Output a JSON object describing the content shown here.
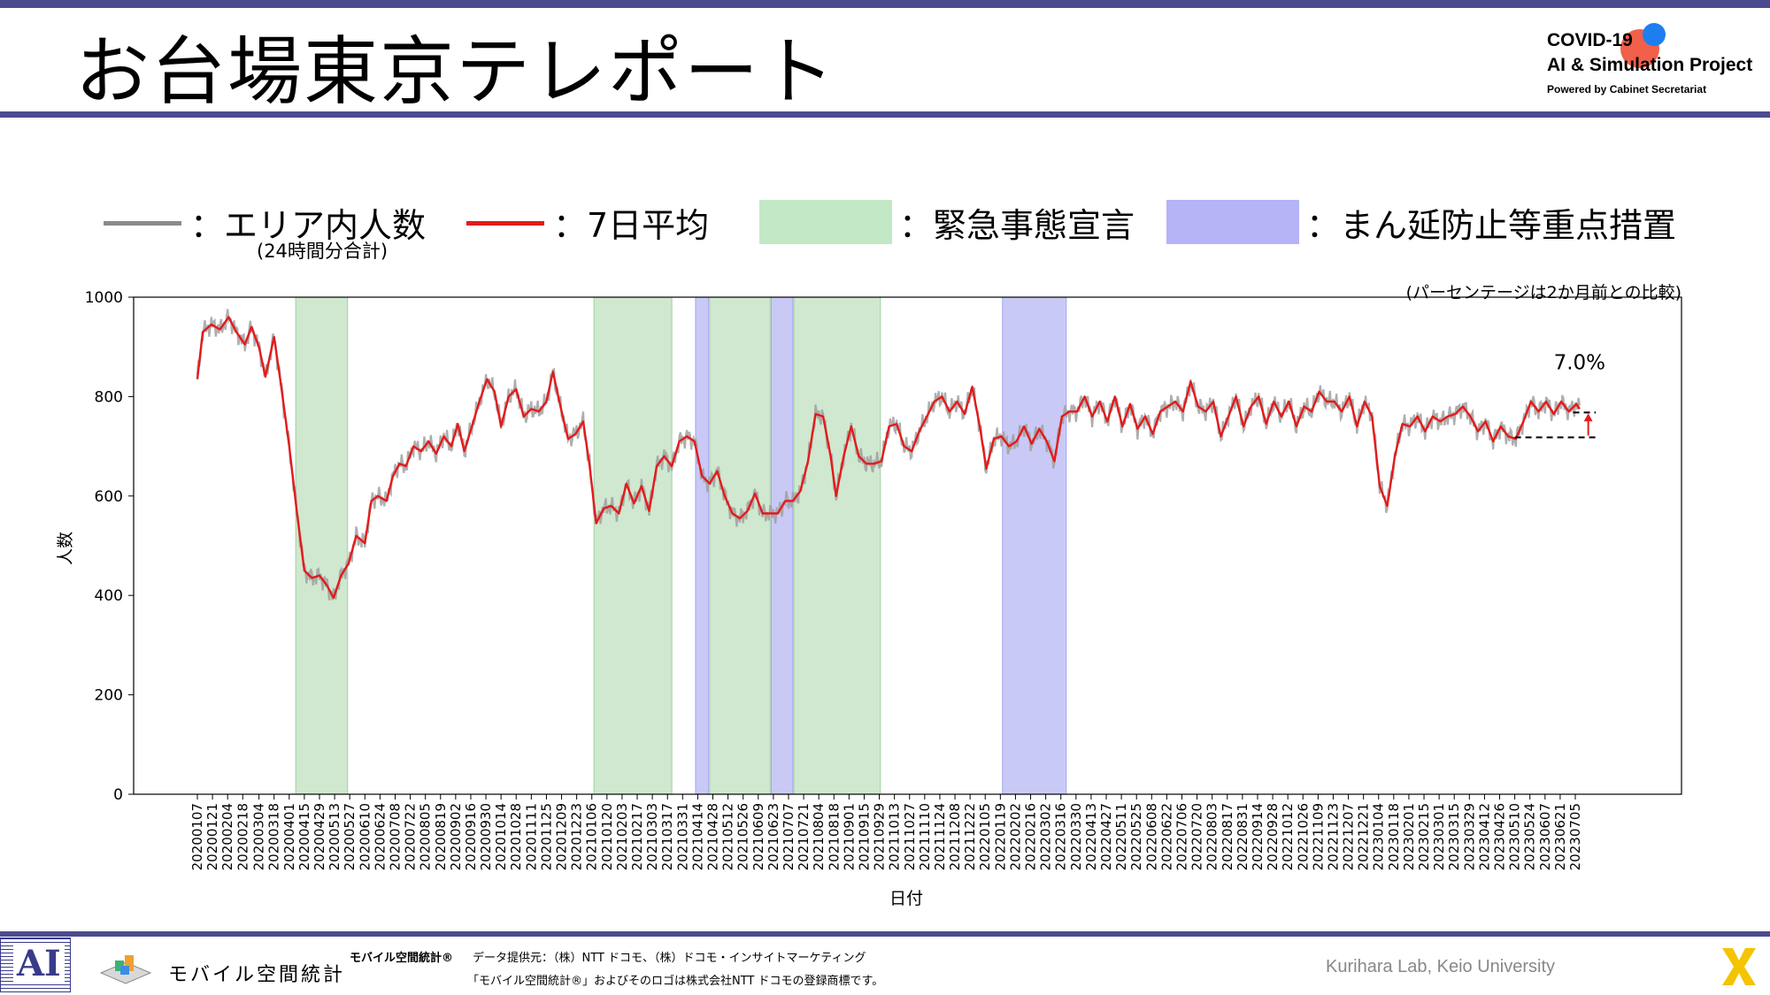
{
  "header": {
    "title": "お台場東京テレポート",
    "logo_line1": "COVID-19",
    "logo_line2": "AI & Simulation Project",
    "logo_line3": "Powered by Cabinet Secretariat"
  },
  "legend": {
    "daily_label": "：エリア内人数",
    "daily_sub": "(24時間分合計)",
    "avg_label": "：7日平均",
    "emergency_label": "：緊急事態宣言",
    "semi_label": "：まん延防止等重点措置",
    "note": "(パーセンテージは2か月前との比較)"
  },
  "colors": {
    "daily": "#a0a0a0",
    "avg": "#e41a1a",
    "emergency": "#a8d8a8",
    "semi": "#a8a8f0",
    "frame": "#4b4b8f"
  },
  "chart_data": {
    "type": "line",
    "xlabel": "日付",
    "ylabel": "人数",
    "ylim": [
      0,
      1000
    ],
    "yticks": [
      0,
      200,
      400,
      600,
      800,
      1000
    ],
    "x_range": [
      "2020-01-01",
      "2023-07-31"
    ],
    "xtick_labels": [
      "20200107",
      "20200121",
      "20200204",
      "20200218",
      "20200304",
      "20200318",
      "20200401",
      "20200415",
      "20200429",
      "20200513",
      "20200527",
      "20200610",
      "20200624",
      "20200708",
      "20200722",
      "20200805",
      "20200819",
      "20200902",
      "20200916",
      "20200930",
      "20201014",
      "20201028",
      "20201111",
      "20201125",
      "20201209",
      "20201223",
      "20210106",
      "20210120",
      "20210203",
      "20210217",
      "20210303",
      "20210317",
      "20210331",
      "20210414",
      "20210428",
      "20210512",
      "20210526",
      "20210609",
      "20210623",
      "20210707",
      "20210721",
      "20210804",
      "20210818",
      "20210901",
      "20210915",
      "20210929",
      "20211013",
      "20211027",
      "20211110",
      "20211124",
      "20211208",
      "20211222",
      "20220105",
      "20220119",
      "20220202",
      "20220216",
      "20220302",
      "20220316",
      "20220330",
      "20220413",
      "20220427",
      "20220511",
      "20220525",
      "20220608",
      "20220622",
      "20220706",
      "20220720",
      "20220803",
      "20220817",
      "20220831",
      "20220914",
      "20220928",
      "20221012",
      "20221026",
      "20221109",
      "20221123",
      "20221207",
      "20221221",
      "20230104",
      "20230118",
      "20230201",
      "20230215",
      "20230301",
      "20230315",
      "20230329",
      "20230412",
      "20230426",
      "20230510",
      "20230524",
      "20230607",
      "20230621",
      "20230705"
    ],
    "periods": [
      {
        "type": "emergency",
        "start": "2020-04-07",
        "end": "2020-05-25"
      },
      {
        "type": "emergency",
        "start": "2021-01-08",
        "end": "2021-03-21"
      },
      {
        "type": "semi",
        "start": "2021-04-12",
        "end": "2021-04-24"
      },
      {
        "type": "emergency",
        "start": "2021-04-25",
        "end": "2021-06-20"
      },
      {
        "type": "semi",
        "start": "2021-06-21",
        "end": "2021-07-11"
      },
      {
        "type": "emergency",
        "start": "2021-07-12",
        "end": "2021-09-30"
      },
      {
        "type": "semi",
        "start": "2022-01-21",
        "end": "2022-03-21"
      }
    ],
    "series": [
      {
        "name": "7日平均",
        "points": [
          [
            "2020-01-07",
            835
          ],
          [
            "2020-01-12",
            930
          ],
          [
            "2020-01-20",
            945
          ],
          [
            "2020-01-28",
            935
          ],
          [
            "2020-02-05",
            960
          ],
          [
            "2020-02-12",
            930
          ],
          [
            "2020-02-20",
            905
          ],
          [
            "2020-02-26",
            940
          ],
          [
            "2020-03-04",
            900
          ],
          [
            "2020-03-10",
            840
          ],
          [
            "2020-03-14",
            880
          ],
          [
            "2020-03-18",
            920
          ],
          [
            "2020-03-24",
            830
          ],
          [
            "2020-04-01",
            700
          ],
          [
            "2020-04-08",
            570
          ],
          [
            "2020-04-15",
            450
          ],
          [
            "2020-04-22",
            435
          ],
          [
            "2020-04-29",
            440
          ],
          [
            "2020-05-06",
            420
          ],
          [
            "2020-05-12",
            395
          ],
          [
            "2020-05-19",
            440
          ],
          [
            "2020-05-26",
            465
          ],
          [
            "2020-06-02",
            520
          ],
          [
            "2020-06-10",
            505
          ],
          [
            "2020-06-16",
            590
          ],
          [
            "2020-06-22",
            600
          ],
          [
            "2020-06-30",
            590
          ],
          [
            "2020-07-06",
            640
          ],
          [
            "2020-07-12",
            665
          ],
          [
            "2020-07-18",
            660
          ],
          [
            "2020-07-25",
            700
          ],
          [
            "2020-08-01",
            690
          ],
          [
            "2020-08-08",
            710
          ],
          [
            "2020-08-15",
            685
          ],
          [
            "2020-08-22",
            720
          ],
          [
            "2020-08-29",
            700
          ],
          [
            "2020-09-04",
            745
          ],
          [
            "2020-09-10",
            690
          ],
          [
            "2020-09-17",
            740
          ],
          [
            "2020-09-24",
            790
          ],
          [
            "2020-10-01",
            835
          ],
          [
            "2020-10-08",
            810
          ],
          [
            "2020-10-14",
            740
          ],
          [
            "2020-10-21",
            800
          ],
          [
            "2020-10-28",
            815
          ],
          [
            "2020-11-04",
            760
          ],
          [
            "2020-11-11",
            775
          ],
          [
            "2020-11-18",
            770
          ],
          [
            "2020-11-25",
            790
          ],
          [
            "2020-12-01",
            850
          ],
          [
            "2020-12-08",
            780
          ],
          [
            "2020-12-15",
            715
          ],
          [
            "2020-12-22",
            725
          ],
          [
            "2020-12-29",
            750
          ],
          [
            "2021-01-04",
            660
          ],
          [
            "2021-01-10",
            545
          ],
          [
            "2021-01-17",
            575
          ],
          [
            "2021-01-24",
            580
          ],
          [
            "2021-01-31",
            565
          ],
          [
            "2021-02-07",
            625
          ],
          [
            "2021-02-14",
            585
          ],
          [
            "2021-02-21",
            620
          ],
          [
            "2021-02-28",
            570
          ],
          [
            "2021-03-07",
            660
          ],
          [
            "2021-03-14",
            680
          ],
          [
            "2021-03-21",
            660
          ],
          [
            "2021-03-28",
            710
          ],
          [
            "2021-04-04",
            720
          ],
          [
            "2021-04-11",
            710
          ],
          [
            "2021-04-18",
            640
          ],
          [
            "2021-04-25",
            625
          ],
          [
            "2021-05-02",
            650
          ],
          [
            "2021-05-09",
            600
          ],
          [
            "2021-05-16",
            565
          ],
          [
            "2021-05-23",
            555
          ],
          [
            "2021-05-30",
            570
          ],
          [
            "2021-06-06",
            605
          ],
          [
            "2021-06-13",
            565
          ],
          [
            "2021-06-20",
            565
          ],
          [
            "2021-06-27",
            565
          ],
          [
            "2021-07-04",
            590
          ],
          [
            "2021-07-11",
            590
          ],
          [
            "2021-07-18",
            610
          ],
          [
            "2021-07-25",
            670
          ],
          [
            "2021-08-01",
            765
          ],
          [
            "2021-08-08",
            760
          ],
          [
            "2021-08-15",
            680
          ],
          [
            "2021-08-20",
            600
          ],
          [
            "2021-08-27",
            680
          ],
          [
            "2021-09-03",
            740
          ],
          [
            "2021-09-10",
            680
          ],
          [
            "2021-09-17",
            665
          ],
          [
            "2021-09-24",
            665
          ],
          [
            "2021-10-01",
            670
          ],
          [
            "2021-10-08",
            740
          ],
          [
            "2021-10-15",
            745
          ],
          [
            "2021-10-22",
            700
          ],
          [
            "2021-10-29",
            690
          ],
          [
            "2021-11-05",
            730
          ],
          [
            "2021-11-12",
            760
          ],
          [
            "2021-11-19",
            790
          ],
          [
            "2021-11-26",
            800
          ],
          [
            "2021-12-03",
            770
          ],
          [
            "2021-12-10",
            790
          ],
          [
            "2021-12-17",
            765
          ],
          [
            "2021-12-24",
            820
          ],
          [
            "2021-12-31",
            740
          ],
          [
            "2022-01-06",
            655
          ],
          [
            "2022-01-13",
            715
          ],
          [
            "2022-01-20",
            720
          ],
          [
            "2022-01-27",
            700
          ],
          [
            "2022-02-03",
            710
          ],
          [
            "2022-02-10",
            740
          ],
          [
            "2022-02-17",
            705
          ],
          [
            "2022-02-24",
            735
          ],
          [
            "2022-03-03",
            710
          ],
          [
            "2022-03-10",
            670
          ],
          [
            "2022-03-17",
            760
          ],
          [
            "2022-03-24",
            770
          ],
          [
            "2022-03-31",
            770
          ],
          [
            "2022-04-07",
            800
          ],
          [
            "2022-04-14",
            760
          ],
          [
            "2022-04-21",
            790
          ],
          [
            "2022-04-28",
            750
          ],
          [
            "2022-05-05",
            800
          ],
          [
            "2022-05-12",
            740
          ],
          [
            "2022-05-19",
            785
          ],
          [
            "2022-05-26",
            735
          ],
          [
            "2022-06-02",
            760
          ],
          [
            "2022-06-09",
            725
          ],
          [
            "2022-06-16",
            770
          ],
          [
            "2022-06-23",
            780
          ],
          [
            "2022-06-30",
            790
          ],
          [
            "2022-07-07",
            770
          ],
          [
            "2022-07-14",
            830
          ],
          [
            "2022-07-21",
            780
          ],
          [
            "2022-07-28",
            770
          ],
          [
            "2022-08-04",
            790
          ],
          [
            "2022-08-11",
            720
          ],
          [
            "2022-08-18",
            760
          ],
          [
            "2022-08-25",
            800
          ],
          [
            "2022-09-01",
            740
          ],
          [
            "2022-09-08",
            780
          ],
          [
            "2022-09-15",
            800
          ],
          [
            "2022-09-22",
            745
          ],
          [
            "2022-09-29",
            790
          ],
          [
            "2022-10-06",
            760
          ],
          [
            "2022-10-13",
            790
          ],
          [
            "2022-10-20",
            740
          ],
          [
            "2022-10-27",
            780
          ],
          [
            "2022-11-03",
            770
          ],
          [
            "2022-11-10",
            810
          ],
          [
            "2022-11-17",
            790
          ],
          [
            "2022-11-24",
            790
          ],
          [
            "2022-12-01",
            770
          ],
          [
            "2022-12-08",
            800
          ],
          [
            "2022-12-15",
            740
          ],
          [
            "2022-12-22",
            790
          ],
          [
            "2022-12-29",
            760
          ],
          [
            "2023-01-05",
            620
          ],
          [
            "2023-01-12",
            580
          ],
          [
            "2023-01-19",
            680
          ],
          [
            "2023-01-26",
            745
          ],
          [
            "2023-02-02",
            740
          ],
          [
            "2023-02-09",
            760
          ],
          [
            "2023-02-16",
            730
          ],
          [
            "2023-02-23",
            760
          ],
          [
            "2023-03-02",
            750
          ],
          [
            "2023-03-09",
            760
          ],
          [
            "2023-03-16",
            765
          ],
          [
            "2023-03-23",
            780
          ],
          [
            "2023-03-30",
            760
          ],
          [
            "2023-04-06",
            730
          ],
          [
            "2023-04-13",
            750
          ],
          [
            "2023-04-20",
            710
          ],
          [
            "2023-04-27",
            740
          ],
          [
            "2023-05-04",
            720
          ],
          [
            "2023-05-11",
            715
          ],
          [
            "2023-05-18",
            750
          ],
          [
            "2023-05-25",
            790
          ],
          [
            "2023-06-01",
            770
          ],
          [
            "2023-06-08",
            790
          ],
          [
            "2023-06-15",
            765
          ],
          [
            "2023-06-22",
            790
          ],
          [
            "2023-06-29",
            770
          ],
          [
            "2023-07-06",
            785
          ],
          [
            "2023-07-09",
            775
          ]
        ]
      }
    ],
    "annotation": {
      "text": "7.0%",
      "upper": 768,
      "lower": 718,
      "start": "2023-05-10",
      "end": "2023-07-24"
    }
  },
  "footer": {
    "ai_logo": "AI",
    "mobile_logo_text": "モバイル空間統計",
    "mobile_mark": "モバイル空間統計®",
    "provider": "データ提供元：（株）NTT ドコモ、（株）ドコモ・インサイトマーケティング",
    "trademark": "「モバイル空間統計®」およびそのロゴは株式会社NTT ドコモの登録商標です。",
    "lab": "Kurihara Lab, Keio University"
  }
}
